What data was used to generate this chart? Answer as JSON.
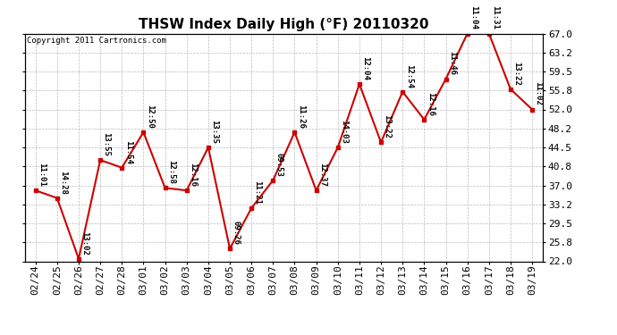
{
  "title": "THSW Index Daily High (°F) 20110320",
  "copyright": "Copyright 2011 Cartronics.com",
  "dates": [
    "02/24",
    "02/25",
    "02/26",
    "02/27",
    "02/28",
    "03/01",
    "03/02",
    "03/03",
    "03/04",
    "03/05",
    "03/06",
    "03/07",
    "03/08",
    "03/09",
    "03/10",
    "03/11",
    "03/12",
    "03/13",
    "03/14",
    "03/15",
    "03/16",
    "03/17",
    "03/18",
    "03/19"
  ],
  "values": [
    36.0,
    34.5,
    22.5,
    42.0,
    40.5,
    47.5,
    36.5,
    36.0,
    44.5,
    24.5,
    32.5,
    38.0,
    47.5,
    36.0,
    44.5,
    57.0,
    45.5,
    55.5,
    50.0,
    58.0,
    67.0,
    67.0,
    56.0,
    52.0
  ],
  "annotations": [
    "11:01",
    "14:28",
    "13:02",
    "13:55",
    "11:54",
    "12:50",
    "12:58",
    "12:16",
    "13:35",
    "09:26",
    "11:21",
    "09:53",
    "11:26",
    "12:37",
    "14:03",
    "12:04",
    "13:22",
    "12:54",
    "12:16",
    "11:46",
    "11:04",
    "11:31",
    "13:22",
    "11:02"
  ],
  "ylim_min": 22.0,
  "ylim_max": 67.0,
  "yticks": [
    22.0,
    25.8,
    29.5,
    33.2,
    37.0,
    40.8,
    44.5,
    48.2,
    52.0,
    55.8,
    59.5,
    63.2,
    67.0
  ],
  "line_color": "#cc0000",
  "marker_color": "#cc0000",
  "background_color": "#ffffff",
  "grid_color": "#bbbbbb",
  "title_fontsize": 11,
  "annotation_fontsize": 6.5,
  "copyright_fontsize": 6.5,
  "tick_fontsize": 8
}
